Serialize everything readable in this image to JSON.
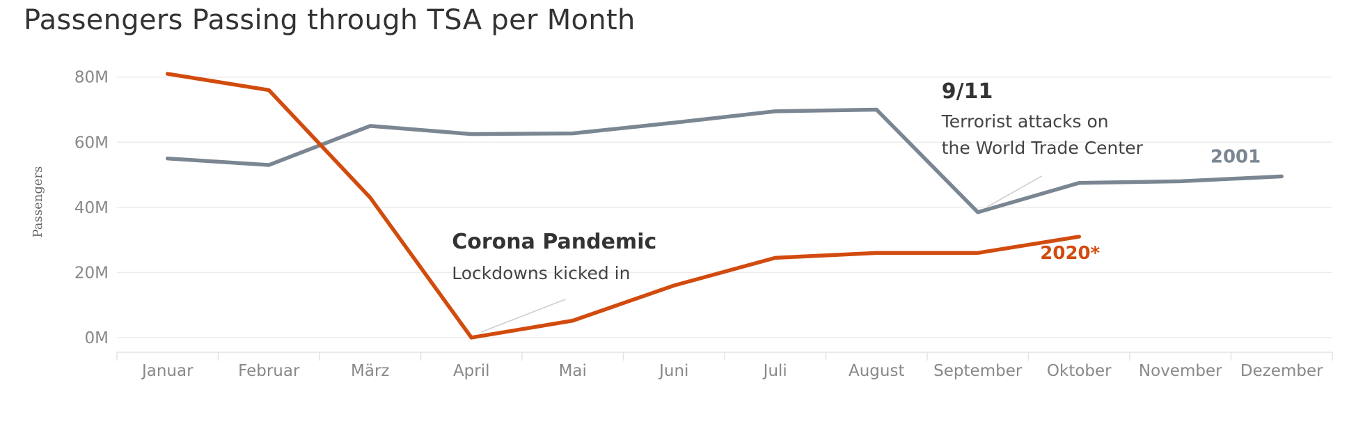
{
  "chart_data": {
    "type": "line",
    "title": "Passengers Passing through TSA per Month",
    "ylabel": "Passengers",
    "xlabel": "",
    "categories": [
      "Januar",
      "Februar",
      "März",
      "April",
      "Mai",
      "Juni",
      "Juli",
      "August",
      "September",
      "Oktober",
      "November",
      "Dezember"
    ],
    "yticks": [
      0,
      20,
      40,
      60,
      80
    ],
    "ytick_labels": [
      "0M",
      "20M",
      "40M",
      "60M",
      "80M"
    ],
    "ylim": [
      -3,
      84
    ],
    "grid": true,
    "series": [
      {
        "name": "2001",
        "color": "#7a8691",
        "values": [
          55,
          53,
          65,
          62.5,
          62.7,
          66,
          69.5,
          70,
          38.5,
          47.5,
          48,
          49.5
        ]
      },
      {
        "name": "2020*",
        "color": "#d24b0e",
        "values": [
          81,
          76,
          43,
          0,
          5.2,
          16,
          24.5,
          26,
          26,
          31,
          null,
          null
        ]
      }
    ],
    "annotations": [
      {
        "title": "Corona Pandemic",
        "text": [
          "Lockdowns kicked in"
        ],
        "category": "April",
        "value": 0
      },
      {
        "title": "9/11",
        "text": [
          "Terrorist attacks on",
          "the World Trade Center"
        ],
        "category": "September",
        "value": 38.5
      }
    ]
  }
}
